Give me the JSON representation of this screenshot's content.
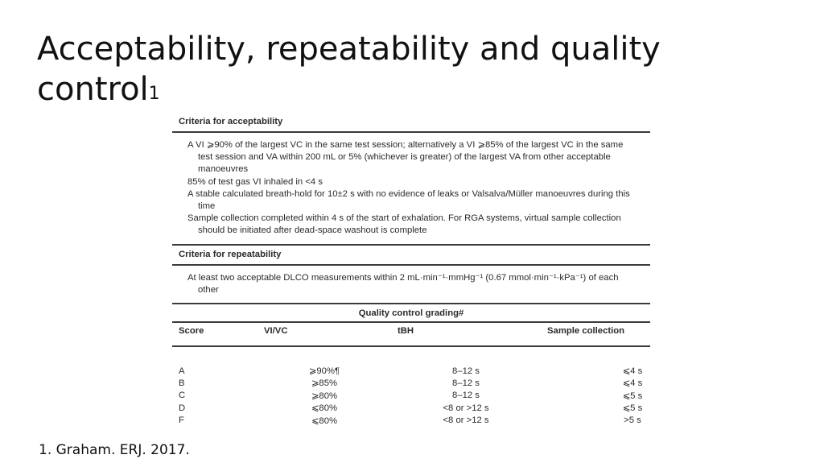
{
  "slide": {
    "title": "Acceptability, repeatability and quality control",
    "title_sup": "1",
    "footnote": "1. Graham. ERJ. 2017."
  },
  "acceptability": {
    "heading": "Criteria for acceptability",
    "items": [
      "A VI ⩾90% of the largest VC in the same test session; alternatively a VI ⩾85% of the largest VC in the same test session and VA within 200 mL or 5% (whichever is greater) of the largest VA from other acceptable manoeuvres",
      "85% of test gas VI inhaled in <4 s",
      "A stable calculated breath-hold for 10±2 s with no evidence of leaks or Valsalva/Müller manoeuvres during this time",
      "Sample collection completed within 4 s of the start of exhalation. For RGA systems, virtual sample collection should be initiated after dead-space washout is complete"
    ]
  },
  "repeatability": {
    "heading": "Criteria for repeatability",
    "text": "At least two acceptable DLCO measurements within 2 mL·min⁻¹·mmHg⁻¹ (0.67 mmol·min⁻¹·kPa⁻¹) of each other"
  },
  "quality_control": {
    "heading": "Quality control grading#",
    "columns": [
      "Score",
      "VI/VC",
      "tBH",
      "Sample collection"
    ],
    "rows": [
      [
        "A",
        "⩾90%¶",
        "8–12 s",
        "⩽4 s"
      ],
      [
        "B",
        "⩾85%",
        "8–12 s",
        "⩽4 s"
      ],
      [
        "C",
        "⩾80%",
        "8–12 s",
        "⩽5 s"
      ],
      [
        "D",
        "⩽80%",
        "<8 or >12 s",
        "⩽5 s"
      ],
      [
        "F",
        "⩽80%",
        "<8 or >12 s",
        ">5 s"
      ]
    ]
  }
}
